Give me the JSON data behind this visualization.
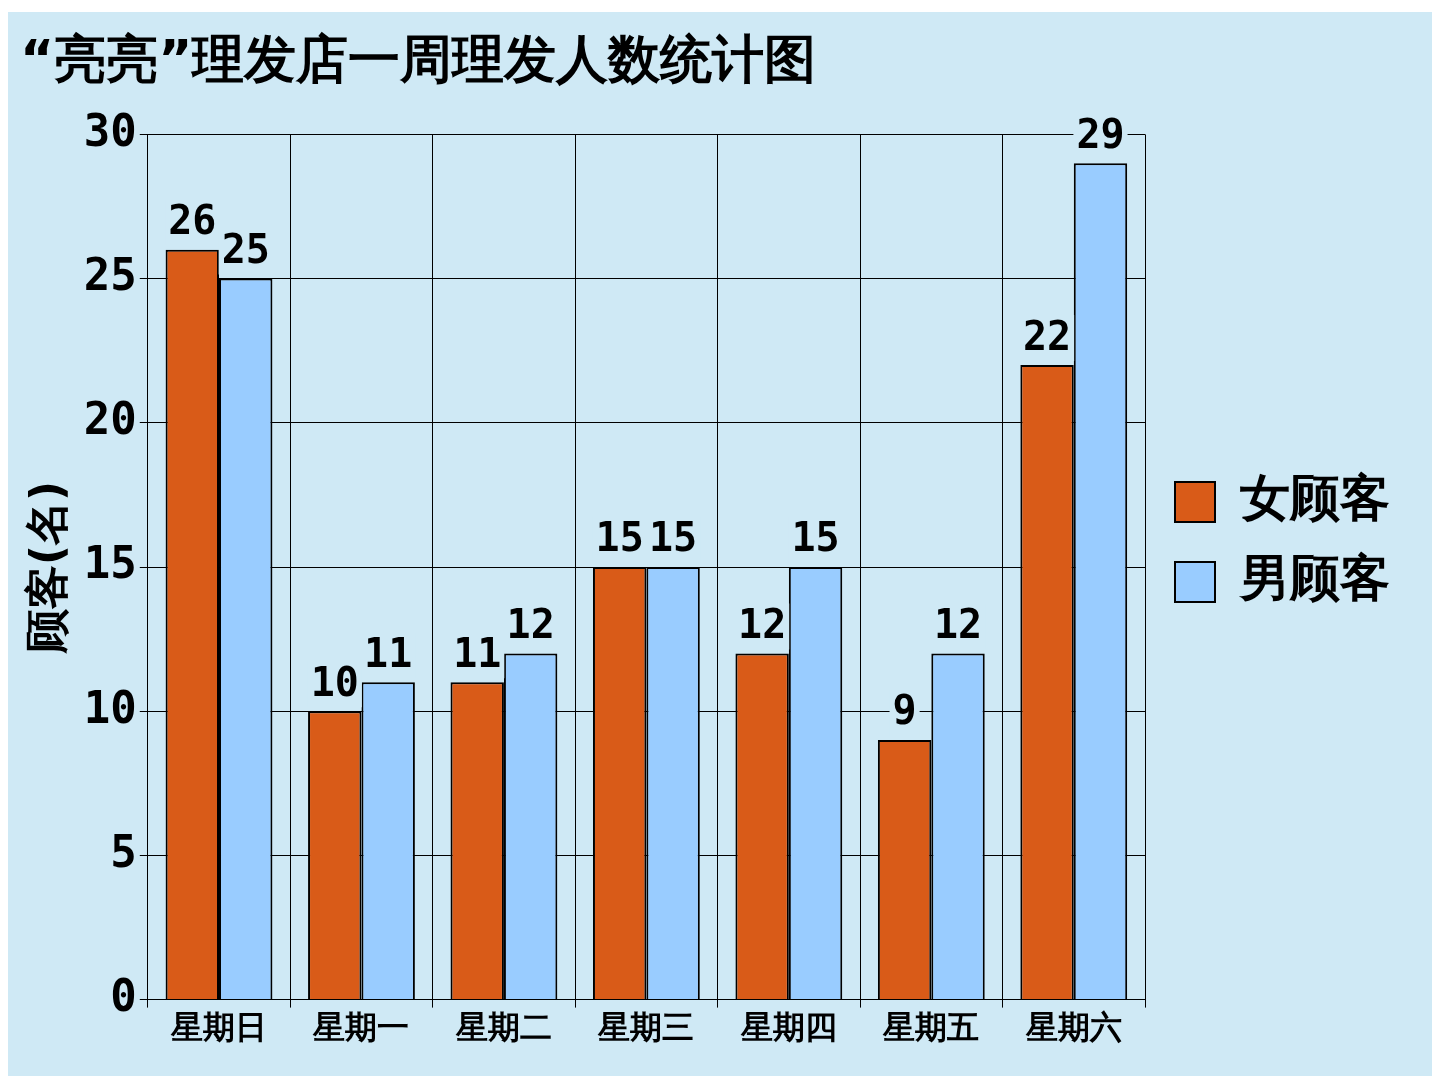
{
  "chart_data": {
    "type": "bar",
    "title": "“亮亮”理发店一周理发人数统计图",
    "ylabel": "顾客(名)",
    "categories": [
      "星期日",
      "星期一",
      "星期二",
      "星期三",
      "星期四",
      "星期五",
      "星期六"
    ],
    "series": [
      {
        "name": "女顾客",
        "color": "#d95b18",
        "values": [
          26,
          10,
          11,
          15,
          12,
          9,
          22
        ]
      },
      {
        "name": "男顾客",
        "color": "#99ccff",
        "values": [
          25,
          11,
          12,
          15,
          15,
          12,
          29
        ]
      }
    ],
    "ylim": [
      0,
      30
    ],
    "yticks": [
      0,
      5,
      10,
      15,
      20,
      25,
      30
    ],
    "grid": true,
    "legend": "right",
    "data_labels": true
  }
}
